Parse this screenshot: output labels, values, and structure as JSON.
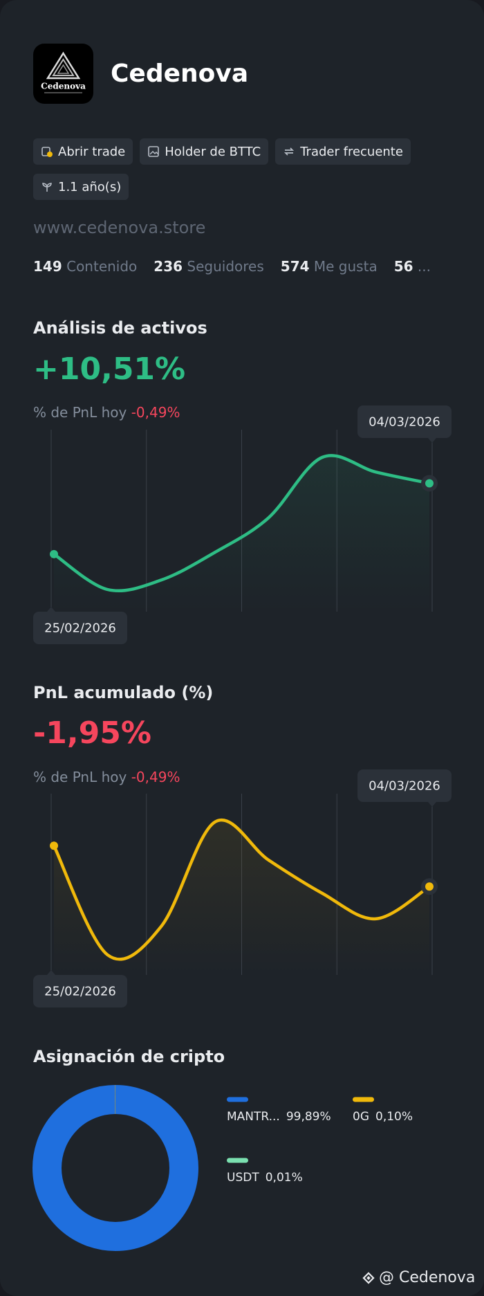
{
  "profile": {
    "name": "Cedenova",
    "logo_text": "Cedenova",
    "tags": [
      "Abrir trade",
      "Holder de BTTC",
      "Trader frecuente",
      "1.1 año(s)"
    ],
    "website": "www.cedenova.store",
    "stats": [
      {
        "value": 149,
        "label": "Contenido"
      },
      {
        "value": 236,
        "label": "Seguidores"
      },
      {
        "value": 574,
        "label": "Me gusta"
      },
      {
        "value": 56,
        "label": "..."
      }
    ]
  },
  "chart_data": [
    {
      "type": "line",
      "title": "Análisis de activos",
      "headline": "+10,51%",
      "headline_color": "#2ebd85",
      "sub_label": "% de PnL hoy",
      "sub_value": "-0,49%",
      "x": [
        "25/02/2026",
        null,
        null,
        null,
        null,
        null,
        null,
        "04/03/2026"
      ],
      "values": [
        78,
        37,
        48,
        80,
        120,
        190,
        173,
        160
      ],
      "color": "#2ebd85"
    },
    {
      "type": "line",
      "title": "PnL acumulado (%)",
      "headline": "-1,95%",
      "headline_color": "#f6465d",
      "sub_label": "% de PnL hoy",
      "sub_value": "-0,49%",
      "x": [
        "25/02/2026",
        null,
        null,
        null,
        null,
        null,
        null,
        "04/03/2026"
      ],
      "values": [
        165,
        50,
        80,
        190,
        150,
        115,
        88,
        122
      ],
      "color": "#f0b90b"
    },
    {
      "type": "pie",
      "title": "Asignación de cripto",
      "categories": [
        "MANTR...",
        "0G",
        "USDT"
      ],
      "values": [
        99.89,
        0.1,
        0.01
      ],
      "value_labels": [
        "99,89%",
        "0,10%",
        "0,01%"
      ],
      "colors": [
        "#1f6fde",
        "#f0b90b",
        "#7be0b0"
      ]
    }
  ],
  "watermark": "@ Cedenova"
}
